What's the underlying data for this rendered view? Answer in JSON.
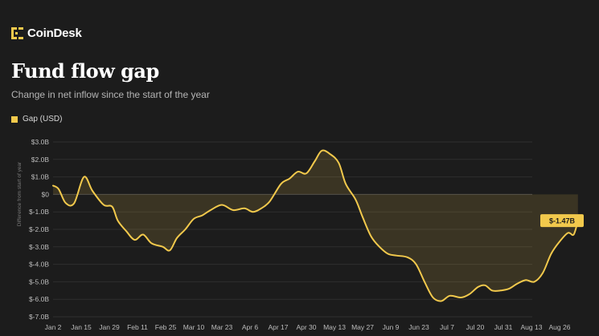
{
  "brand": {
    "name": "CoinDesk",
    "logo_icon": "coindesk-logo-icon"
  },
  "header": {
    "title": "Fund flow gap",
    "subtitle": "Change in net inflow since the start of the year"
  },
  "colors": {
    "background": "#1c1c1c",
    "line": "#f2c94c",
    "area": "#3a3422",
    "grid": "#2f2f2f"
  },
  "chart_data": {
    "type": "area",
    "legend": {
      "placement": "top-left",
      "entries": [
        "Gap (USD)"
      ]
    },
    "xlabel": "",
    "ylabel": "Difference from start of year",
    "ylim": [
      -7,
      3
    ],
    "grid": true,
    "y_ticks": [
      {
        "value": 3,
        "label": "$3.0B"
      },
      {
        "value": 2,
        "label": "$2.0B"
      },
      {
        "value": 1,
        "label": "$1.0B"
      },
      {
        "value": 0,
        "label": "$0"
      },
      {
        "value": -1,
        "label": "$-1.0B"
      },
      {
        "value": -2,
        "label": "$-2.0B"
      },
      {
        "value": -3,
        "label": "$-3.0B"
      },
      {
        "value": -4,
        "label": "$-4.0B"
      },
      {
        "value": -5,
        "label": "$-5.0B"
      },
      {
        "value": -6,
        "label": "$-6.0B"
      },
      {
        "value": -7,
        "label": "$-7.0B"
      }
    ],
    "x_ticks": [
      "Jan 2",
      "Jan 15",
      "Jan 29",
      "Feb 11",
      "Feb 25",
      "Mar 10",
      "Mar 23",
      "Apr 6",
      "Apr 17",
      "Apr 30",
      "May 13",
      "May 27",
      "Jun 9",
      "Jun 23",
      "Jul 7",
      "Jul 20",
      "Jul 31",
      "Aug 13",
      "Aug 26"
    ],
    "series": [
      {
        "name": "Gap (USD)",
        "end_label": "$-1.47B",
        "points": [
          [
            0,
            0.5
          ],
          [
            0.2,
            0.3
          ],
          [
            0.45,
            -0.5
          ],
          [
            0.75,
            -0.5
          ],
          [
            1.1,
            1.0
          ],
          [
            1.4,
            0.2
          ],
          [
            1.8,
            -0.6
          ],
          [
            2.1,
            -0.7
          ],
          [
            2.3,
            -1.5
          ],
          [
            2.6,
            -2.1
          ],
          [
            2.9,
            -2.6
          ],
          [
            3.2,
            -2.3
          ],
          [
            3.5,
            -2.8
          ],
          [
            3.9,
            -3.0
          ],
          [
            4.15,
            -3.2
          ],
          [
            4.4,
            -2.5
          ],
          [
            4.7,
            -2.0
          ],
          [
            5.0,
            -1.4
          ],
          [
            5.3,
            -1.2
          ],
          [
            5.6,
            -0.9
          ],
          [
            6.0,
            -0.6
          ],
          [
            6.4,
            -0.9
          ],
          [
            6.8,
            -0.8
          ],
          [
            7.1,
            -1.0
          ],
          [
            7.4,
            -0.8
          ],
          [
            7.7,
            -0.4
          ],
          [
            8.1,
            0.6
          ],
          [
            8.4,
            0.9
          ],
          [
            8.7,
            1.3
          ],
          [
            9.0,
            1.2
          ],
          [
            9.3,
            1.9
          ],
          [
            9.55,
            2.5
          ],
          [
            9.85,
            2.3
          ],
          [
            10.15,
            1.8
          ],
          [
            10.4,
            0.6
          ],
          [
            10.75,
            -0.3
          ],
          [
            11.0,
            -1.3
          ],
          [
            11.3,
            -2.4
          ],
          [
            11.6,
            -3.0
          ],
          [
            11.9,
            -3.4
          ],
          [
            12.2,
            -3.5
          ],
          [
            12.6,
            -3.6
          ],
          [
            12.9,
            -4.0
          ],
          [
            13.2,
            -5.0
          ],
          [
            13.5,
            -5.9
          ],
          [
            13.8,
            -6.1
          ],
          [
            14.1,
            -5.8
          ],
          [
            14.5,
            -5.9
          ],
          [
            14.8,
            -5.7
          ],
          [
            15.1,
            -5.3
          ],
          [
            15.35,
            -5.2
          ],
          [
            15.6,
            -5.5
          ],
          [
            15.9,
            -5.5
          ],
          [
            16.2,
            -5.4
          ],
          [
            16.5,
            -5.1
          ],
          [
            16.8,
            -4.9
          ],
          [
            17.1,
            -5.0
          ],
          [
            17.4,
            -4.5
          ],
          [
            17.7,
            -3.4
          ],
          [
            18.0,
            -2.7
          ],
          [
            18.3,
            -2.2
          ],
          [
            18.5,
            -2.3
          ],
          [
            18.65,
            -1.5
          ]
        ]
      }
    ]
  }
}
